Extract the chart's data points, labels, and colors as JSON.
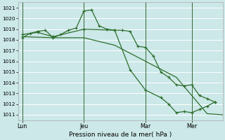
{
  "bg_color": "#cce8e8",
  "grid_color": "#ffffff",
  "vline_color": "#336633",
  "line_color": "#2d6e2d",
  "marker_color": "#2d6e2d",
  "xlabel": "Pression niveau de la mer( hPa )",
  "ylim": [
    1010.5,
    1021.5
  ],
  "yticks": [
    1011,
    1012,
    1013,
    1014,
    1015,
    1016,
    1017,
    1018,
    1019,
    1020,
    1021
  ],
  "day_labels": [
    "Lun",
    "Jeu",
    "Mar",
    "Mer"
  ],
  "day_positions": [
    0,
    16,
    32,
    44
  ],
  "xlim": [
    -1,
    52
  ],
  "line1_x": [
    0,
    2,
    4,
    6,
    8,
    10,
    12,
    14,
    16,
    18,
    20,
    22,
    24,
    26,
    28,
    30,
    32,
    34,
    36,
    38,
    40,
    42,
    44,
    46,
    48,
    50
  ],
  "line1_y": [
    1018.2,
    1018.6,
    1018.8,
    1018.9,
    1018.2,
    1018.5,
    1018.9,
    1019.1,
    1020.7,
    1020.8,
    1019.3,
    1019.0,
    1018.9,
    1018.9,
    1018.8,
    1017.4,
    1017.3,
    1016.5,
    1015.0,
    1014.5,
    1013.8,
    1013.7,
    1013.8,
    1012.8,
    1012.5,
    1012.2
  ],
  "line2_x": [
    0,
    8,
    16,
    24,
    32,
    40,
    48,
    52
  ],
  "line2_y": [
    1018.3,
    1018.2,
    1018.2,
    1017.5,
    1016.0,
    1014.5,
    1011.1,
    1011.0
  ],
  "line3_x": [
    0,
    4,
    8,
    16,
    24,
    28,
    32,
    36,
    38,
    40,
    42,
    44,
    46,
    48,
    50
  ],
  "line3_y": [
    1018.5,
    1018.7,
    1018.3,
    1019.0,
    1018.9,
    1015.2,
    1013.3,
    1012.6,
    1012.0,
    1011.2,
    1011.3,
    1011.2,
    1011.5,
    1011.8,
    1012.2
  ]
}
